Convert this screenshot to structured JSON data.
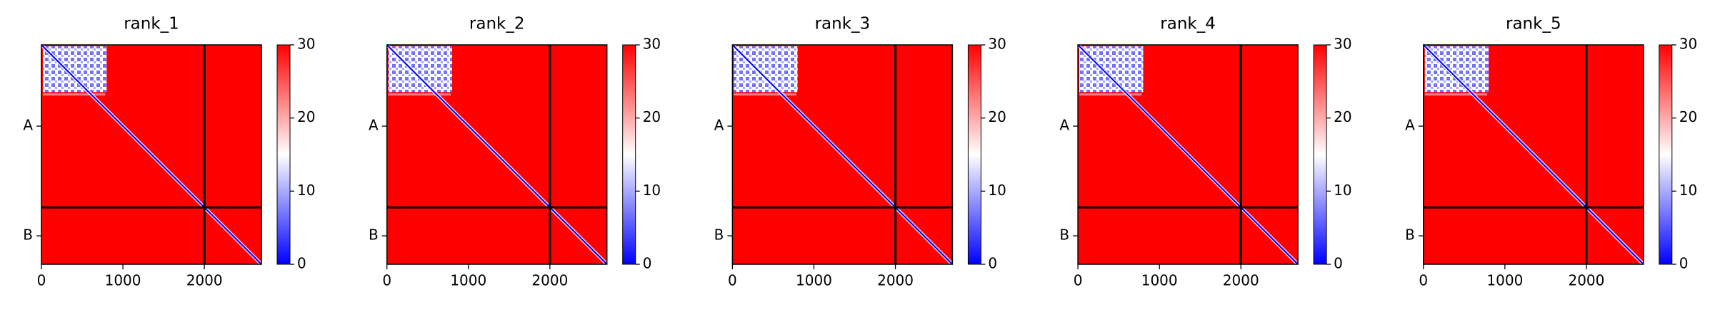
{
  "chart_data": [
    {
      "type": "heatmap",
      "title": "rank_1",
      "xlim": [
        0,
        2700
      ],
      "xticks": [
        0,
        1000,
        2000
      ],
      "ylim": [
        2700,
        0
      ],
      "yticks": [
        {
          "value": 1000,
          "label": "A"
        },
        {
          "value": 2350,
          "label": "B"
        }
      ],
      "chain_breaks": [
        2000
      ],
      "clim": [
        0,
        30
      ],
      "cticks": [
        0,
        10,
        20,
        30
      ],
      "colors": [
        "#0000ff",
        "#ffffff",
        "#ff0000"
      ]
    },
    {
      "type": "heatmap",
      "title": "rank_2",
      "xlim": [
        0,
        2700
      ],
      "xticks": [
        0,
        1000,
        2000
      ],
      "ylim": [
        2700,
        0
      ],
      "yticks": [
        {
          "value": 1000,
          "label": "A"
        },
        {
          "value": 2350,
          "label": "B"
        }
      ],
      "chain_breaks": [
        2000
      ],
      "clim": [
        0,
        30
      ],
      "cticks": [
        0,
        10,
        20,
        30
      ],
      "colors": [
        "#0000ff",
        "#ffffff",
        "#ff0000"
      ]
    },
    {
      "type": "heatmap",
      "title": "rank_3",
      "xlim": [
        0,
        2700
      ],
      "xticks": [
        0,
        1000,
        2000
      ],
      "ylim": [
        2700,
        0
      ],
      "yticks": [
        {
          "value": 1000,
          "label": "A"
        },
        {
          "value": 2350,
          "label": "B"
        }
      ],
      "chain_breaks": [
        2000
      ],
      "clim": [
        0,
        30
      ],
      "cticks": [
        0,
        10,
        20,
        30
      ],
      "colors": [
        "#0000ff",
        "#ffffff",
        "#ff0000"
      ]
    },
    {
      "type": "heatmap",
      "title": "rank_4",
      "xlim": [
        0,
        2700
      ],
      "xticks": [
        0,
        1000,
        2000
      ],
      "ylim": [
        2700,
        0
      ],
      "yticks": [
        {
          "value": 1000,
          "label": "A"
        },
        {
          "value": 2350,
          "label": "B"
        }
      ],
      "chain_breaks": [
        2000
      ],
      "clim": [
        0,
        30
      ],
      "cticks": [
        0,
        10,
        20,
        30
      ],
      "colors": [
        "#0000ff",
        "#ffffff",
        "#ff0000"
      ]
    },
    {
      "type": "heatmap",
      "title": "rank_5",
      "xlim": [
        0,
        2700
      ],
      "xticks": [
        0,
        1000,
        2000
      ],
      "ylim": [
        2700,
        0
      ],
      "yticks": [
        {
          "value": 1000,
          "label": "A"
        },
        {
          "value": 2350,
          "label": "B"
        }
      ],
      "chain_breaks": [
        2000
      ],
      "clim": [
        0,
        30
      ],
      "cticks": [
        0,
        10,
        20,
        30
      ],
      "colors": [
        "#0000ff",
        "#ffffff",
        "#ff0000"
      ]
    }
  ]
}
